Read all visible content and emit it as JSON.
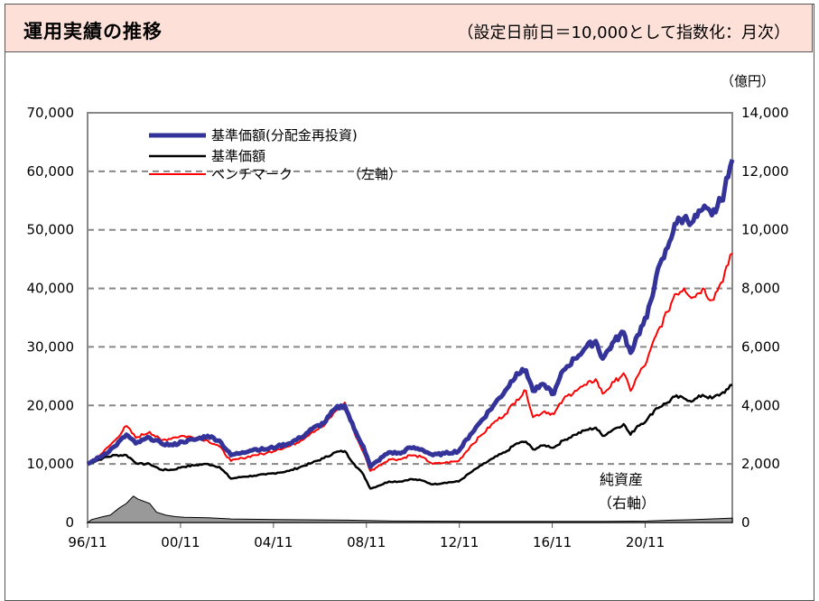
{
  "header": {
    "title": "運用実績の推移",
    "subtitle": "（設定日前日＝10,000として指数化：月次）"
  },
  "colors": {
    "reinvested": "#333399",
    "nav": "#000000",
    "benchmark": "#ff0000",
    "net_assets": "#999999",
    "grid": "#888888"
  },
  "chart_data": {
    "type": "line",
    "title": "運用実績の推移",
    "subtitle": "（設定日前日＝10,000として指数化：月次）",
    "x_range": [
      1996.83,
      2024.58
    ],
    "x_ticks": [
      {
        "label": "96/11",
        "t": 1996.83
      },
      {
        "label": "00/11",
        "t": 2000.83
      },
      {
        "label": "04/11",
        "t": 2004.83
      },
      {
        "label": "08/11",
        "t": 2008.83
      },
      {
        "label": "12/11",
        "t": 2012.83
      },
      {
        "label": "16/11",
        "t": 2016.83
      },
      {
        "label": "20/11",
        "t": 2020.83
      }
    ],
    "y_left": {
      "min": 0,
      "max": 70000,
      "ticks": [
        "0",
        "10,000",
        "20,000",
        "30,000",
        "40,000",
        "50,000",
        "60,000",
        "70,000"
      ]
    },
    "y_right": {
      "min": 0,
      "max": 14000,
      "unit": "（億円）",
      "ticks": [
        "0",
        "2,000",
        "4,000",
        "6,000",
        "8,000",
        "10,000",
        "12,000",
        "14,000"
      ]
    },
    "grid": "horizontal dashed",
    "legend": {
      "placement": "top-left",
      "items": [
        "基準価額(分配金再投資)",
        "基準価額",
        "ベンチマーク"
      ],
      "axis_note": "（左軸）"
    },
    "annotation": {
      "line1": "純資産",
      "line2": "（右軸）"
    },
    "series": [
      {
        "name": "基準価額(分配金再投資)",
        "axis": "left",
        "points": [
          [
            1996.83,
            10000
          ],
          [
            1997.5,
            11500
          ],
          [
            1998.0,
            13000
          ],
          [
            1998.5,
            15000
          ],
          [
            1998.9,
            13500
          ],
          [
            1999.5,
            14500
          ],
          [
            2000.0,
            13500
          ],
          [
            2000.5,
            13200
          ],
          [
            2000.9,
            13800
          ],
          [
            2001.5,
            14200
          ],
          [
            2002.0,
            14800
          ],
          [
            2002.5,
            14000
          ],
          [
            2003.0,
            11500
          ],
          [
            2003.5,
            12000
          ],
          [
            2004.0,
            12500
          ],
          [
            2004.5,
            12500
          ],
          [
            2005.0,
            13000
          ],
          [
            2005.5,
            13500
          ],
          [
            2006.0,
            14500
          ],
          [
            2006.5,
            16000
          ],
          [
            2007.0,
            17000
          ],
          [
            2007.5,
            19500
          ],
          [
            2007.9,
            20000
          ],
          [
            2008.3,
            16000
          ],
          [
            2008.7,
            13000
          ],
          [
            2009.0,
            9500
          ],
          [
            2009.3,
            10500
          ],
          [
            2009.8,
            12000
          ],
          [
            2010.3,
            11800
          ],
          [
            2010.7,
            12800
          ],
          [
            2011.2,
            12500
          ],
          [
            2011.7,
            11500
          ],
          [
            2012.2,
            11800
          ],
          [
            2012.8,
            12200
          ],
          [
            2013.3,
            15000
          ],
          [
            2013.8,
            17500
          ],
          [
            2014.3,
            20000
          ],
          [
            2014.8,
            22500
          ],
          [
            2015.3,
            25500
          ],
          [
            2015.7,
            26000
          ],
          [
            2016.0,
            22500
          ],
          [
            2016.5,
            23500
          ],
          [
            2016.9,
            22000
          ],
          [
            2017.3,
            26000
          ],
          [
            2017.8,
            28000
          ],
          [
            2018.3,
            30000
          ],
          [
            2018.7,
            31000
          ],
          [
            2019.0,
            28000
          ],
          [
            2019.5,
            31000
          ],
          [
            2019.9,
            32500
          ],
          [
            2020.2,
            29000
          ],
          [
            2020.5,
            32000
          ],
          [
            2020.9,
            35000
          ],
          [
            2021.3,
            42000
          ],
          [
            2021.8,
            47000
          ],
          [
            2022.1,
            51000
          ],
          [
            2022.5,
            52000
          ],
          [
            2022.9,
            51500
          ],
          [
            2023.3,
            53500
          ],
          [
            2023.7,
            52500
          ],
          [
            2024.1,
            55000
          ],
          [
            2024.4,
            59000
          ],
          [
            2024.58,
            62000
          ]
        ]
      },
      {
        "name": "基準価額",
        "axis": "left",
        "points": [
          [
            1996.83,
            10000
          ],
          [
            1997.5,
            11000
          ],
          [
            1998.0,
            11500
          ],
          [
            1998.5,
            11500
          ],
          [
            1999.0,
            10000
          ],
          [
            1999.5,
            10000
          ],
          [
            2000.0,
            9000
          ],
          [
            2000.5,
            9000
          ],
          [
            2000.9,
            9500
          ],
          [
            2001.5,
            9800
          ],
          [
            2002.0,
            10000
          ],
          [
            2002.5,
            9500
          ],
          [
            2003.0,
            7500
          ],
          [
            2003.5,
            7800
          ],
          [
            2004.0,
            8000
          ],
          [
            2004.5,
            8200
          ],
          [
            2005.0,
            8500
          ],
          [
            2005.5,
            8800
          ],
          [
            2006.0,
            9500
          ],
          [
            2006.5,
            10200
          ],
          [
            2007.0,
            11000
          ],
          [
            2007.5,
            12000
          ],
          [
            2007.9,
            12200
          ],
          [
            2008.3,
            10000
          ],
          [
            2008.7,
            8200
          ],
          [
            2009.0,
            5800
          ],
          [
            2009.3,
            6200
          ],
          [
            2009.8,
            7000
          ],
          [
            2010.3,
            7000
          ],
          [
            2010.7,
            7400
          ],
          [
            2011.2,
            7200
          ],
          [
            2011.7,
            6500
          ],
          [
            2012.2,
            6800
          ],
          [
            2012.8,
            7000
          ],
          [
            2013.3,
            8500
          ],
          [
            2013.8,
            9800
          ],
          [
            2014.3,
            11000
          ],
          [
            2014.8,
            12000
          ],
          [
            2015.3,
            13500
          ],
          [
            2015.7,
            13800
          ],
          [
            2016.0,
            12500
          ],
          [
            2016.5,
            13200
          ],
          [
            2016.9,
            12800
          ],
          [
            2017.3,
            14000
          ],
          [
            2017.8,
            15000
          ],
          [
            2018.3,
            15800
          ],
          [
            2018.7,
            16200
          ],
          [
            2019.0,
            14800
          ],
          [
            2019.5,
            16000
          ],
          [
            2019.9,
            16800
          ],
          [
            2020.2,
            15000
          ],
          [
            2020.5,
            16500
          ],
          [
            2020.9,
            17500
          ],
          [
            2021.3,
            19500
          ],
          [
            2021.8,
            20500
          ],
          [
            2022.1,
            21500
          ],
          [
            2022.5,
            21200
          ],
          [
            2022.9,
            20800
          ],
          [
            2023.3,
            21800
          ],
          [
            2023.7,
            21200
          ],
          [
            2024.1,
            22000
          ],
          [
            2024.4,
            22800
          ],
          [
            2024.58,
            23500
          ]
        ]
      },
      {
        "name": "ベンチマーク",
        "axis": "left",
        "points": [
          [
            1996.83,
            10000
          ],
          [
            1997.5,
            12000
          ],
          [
            1998.0,
            14000
          ],
          [
            1998.5,
            16500
          ],
          [
            1998.9,
            14500
          ],
          [
            1999.5,
            15500
          ],
          [
            2000.0,
            14000
          ],
          [
            2000.5,
            14500
          ],
          [
            2000.9,
            14800
          ],
          [
            2001.5,
            14500
          ],
          [
            2002.0,
            14000
          ],
          [
            2002.5,
            13000
          ],
          [
            2003.0,
            10500
          ],
          [
            2003.5,
            11000
          ],
          [
            2004.0,
            11500
          ],
          [
            2004.5,
            11800
          ],
          [
            2005.0,
            12500
          ],
          [
            2005.5,
            13000
          ],
          [
            2006.0,
            14000
          ],
          [
            2006.5,
            15500
          ],
          [
            2007.0,
            16500
          ],
          [
            2007.5,
            19000
          ],
          [
            2007.9,
            20500
          ],
          [
            2008.3,
            15500
          ],
          [
            2008.7,
            12000
          ],
          [
            2009.0,
            8800
          ],
          [
            2009.3,
            9500
          ],
          [
            2009.8,
            10800
          ],
          [
            2010.3,
            10800
          ],
          [
            2010.7,
            11500
          ],
          [
            2011.2,
            11200
          ],
          [
            2011.7,
            10000
          ],
          [
            2012.2,
            10200
          ],
          [
            2012.8,
            10500
          ],
          [
            2013.3,
            13000
          ],
          [
            2013.8,
            15000
          ],
          [
            2014.3,
            17000
          ],
          [
            2014.8,
            18500
          ],
          [
            2015.3,
            21000
          ],
          [
            2015.7,
            22500
          ],
          [
            2016.0,
            18000
          ],
          [
            2016.5,
            19000
          ],
          [
            2016.9,
            18500
          ],
          [
            2017.3,
            21000
          ],
          [
            2017.8,
            22500
          ],
          [
            2018.3,
            23500
          ],
          [
            2018.7,
            24500
          ],
          [
            2019.0,
            22000
          ],
          [
            2019.5,
            24000
          ],
          [
            2019.9,
            25500
          ],
          [
            2020.2,
            22500
          ],
          [
            2020.5,
            25000
          ],
          [
            2020.9,
            27500
          ],
          [
            2021.3,
            32000
          ],
          [
            2021.8,
            36000
          ],
          [
            2022.1,
            39000
          ],
          [
            2022.5,
            40000
          ],
          [
            2022.9,
            38500
          ],
          [
            2023.3,
            40000
          ],
          [
            2023.7,
            38000
          ],
          [
            2024.1,
            41000
          ],
          [
            2024.4,
            44000
          ],
          [
            2024.58,
            46000
          ]
        ]
      },
      {
        "name": "純資産",
        "axis": "right",
        "type": "area",
        "points": [
          [
            1996.83,
            0
          ],
          [
            1997.0,
            100
          ],
          [
            1997.5,
            200
          ],
          [
            1997.8,
            250
          ],
          [
            1998.2,
            500
          ],
          [
            1998.5,
            650
          ],
          [
            1998.8,
            900
          ],
          [
            1999.0,
            800
          ],
          [
            1999.5,
            650
          ],
          [
            1999.8,
            350
          ],
          [
            2000.2,
            250
          ],
          [
            2000.6,
            200
          ],
          [
            2001.0,
            180
          ],
          [
            2002.0,
            160
          ],
          [
            2003.0,
            120
          ],
          [
            2005.0,
            100
          ],
          [
            2008.0,
            80
          ],
          [
            2010.0,
            50
          ],
          [
            2013.0,
            40
          ],
          [
            2016.0,
            40
          ],
          [
            2019.0,
            40
          ],
          [
            2020.9,
            50
          ],
          [
            2022.0,
            80
          ],
          [
            2023.0,
            100
          ],
          [
            2024.0,
            130
          ],
          [
            2024.58,
            150
          ]
        ]
      }
    ]
  }
}
